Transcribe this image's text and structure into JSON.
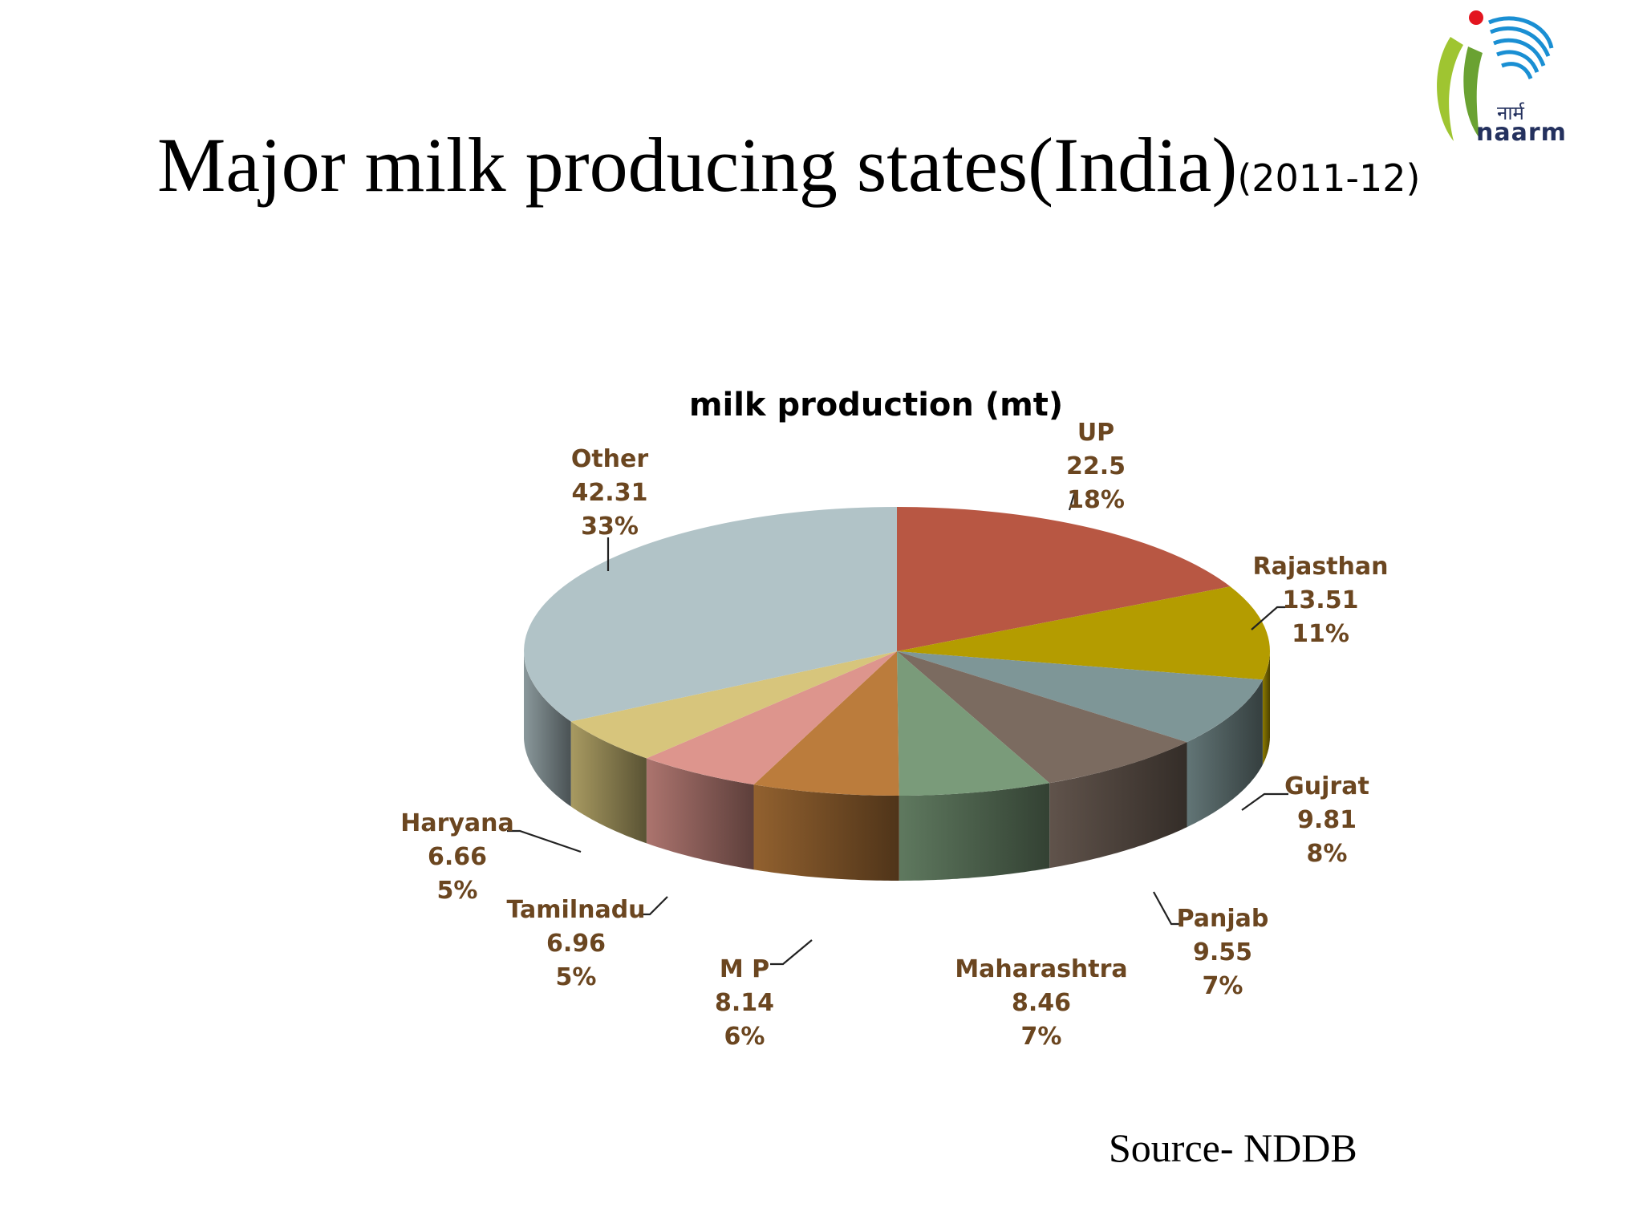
{
  "slide": {
    "title": "Major milk producing states(India)",
    "title_years": "(2011-12)",
    "source": "Source- NDDB",
    "logo_text": "naarm",
    "logo_hindi": "नार्म"
  },
  "chart_data": {
    "type": "pie",
    "title": "milk production (mt)",
    "categories": [
      "UP",
      "Rajasthan",
      "Gujrat",
      "Panjab",
      "Maharashtra",
      "M P",
      "Tamilnadu",
      "Haryana",
      "Other"
    ],
    "values": [
      22.5,
      13.51,
      9.81,
      9.55,
      8.46,
      8.14,
      6.96,
      6.66,
      42.31
    ],
    "value_labels": [
      "22.5",
      "13.51",
      "9.81",
      "9.55",
      "8.46",
      "8.14",
      "6.96",
      "6.66",
      "42.31"
    ],
    "percent_labels": [
      "18%",
      "11%",
      "8%",
      "7%",
      "7%",
      "6%",
      "5%",
      "5%",
      "33%"
    ],
    "colors": [
      "#b85743",
      "#b49c00",
      "#7e9697",
      "#7b6b60",
      "#7a9b7a",
      "#bb7c3c",
      "#dd958d",
      "#d7c57c",
      "#b1c3c7"
    ],
    "label_color": "#6b4620",
    "style": "3d-tilted",
    "start_angle": "12 o'clock, clockwise"
  }
}
